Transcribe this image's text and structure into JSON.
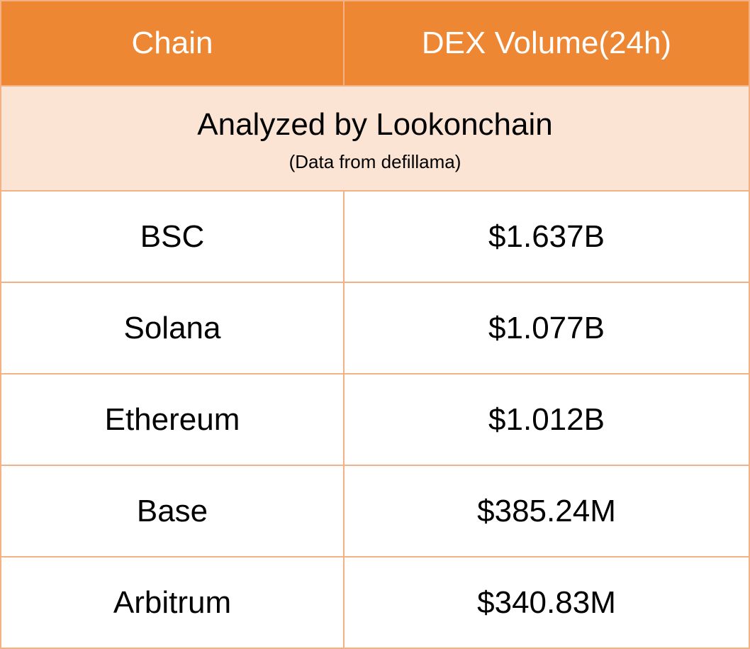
{
  "table": {
    "header": [
      "Chain",
      "DEX Volume(24h)"
    ],
    "banner": {
      "title": "Analyzed by Lookonchain",
      "note": "(Data from defillama)"
    },
    "rows": [
      [
        "BSC",
        "$1.637B"
      ],
      [
        "Solana",
        "$1.077B"
      ],
      [
        "Ethereum",
        "$1.012B"
      ],
      [
        "Base",
        "$385.24M"
      ],
      [
        "Arbitrum",
        "$340.83M"
      ]
    ]
  }
}
